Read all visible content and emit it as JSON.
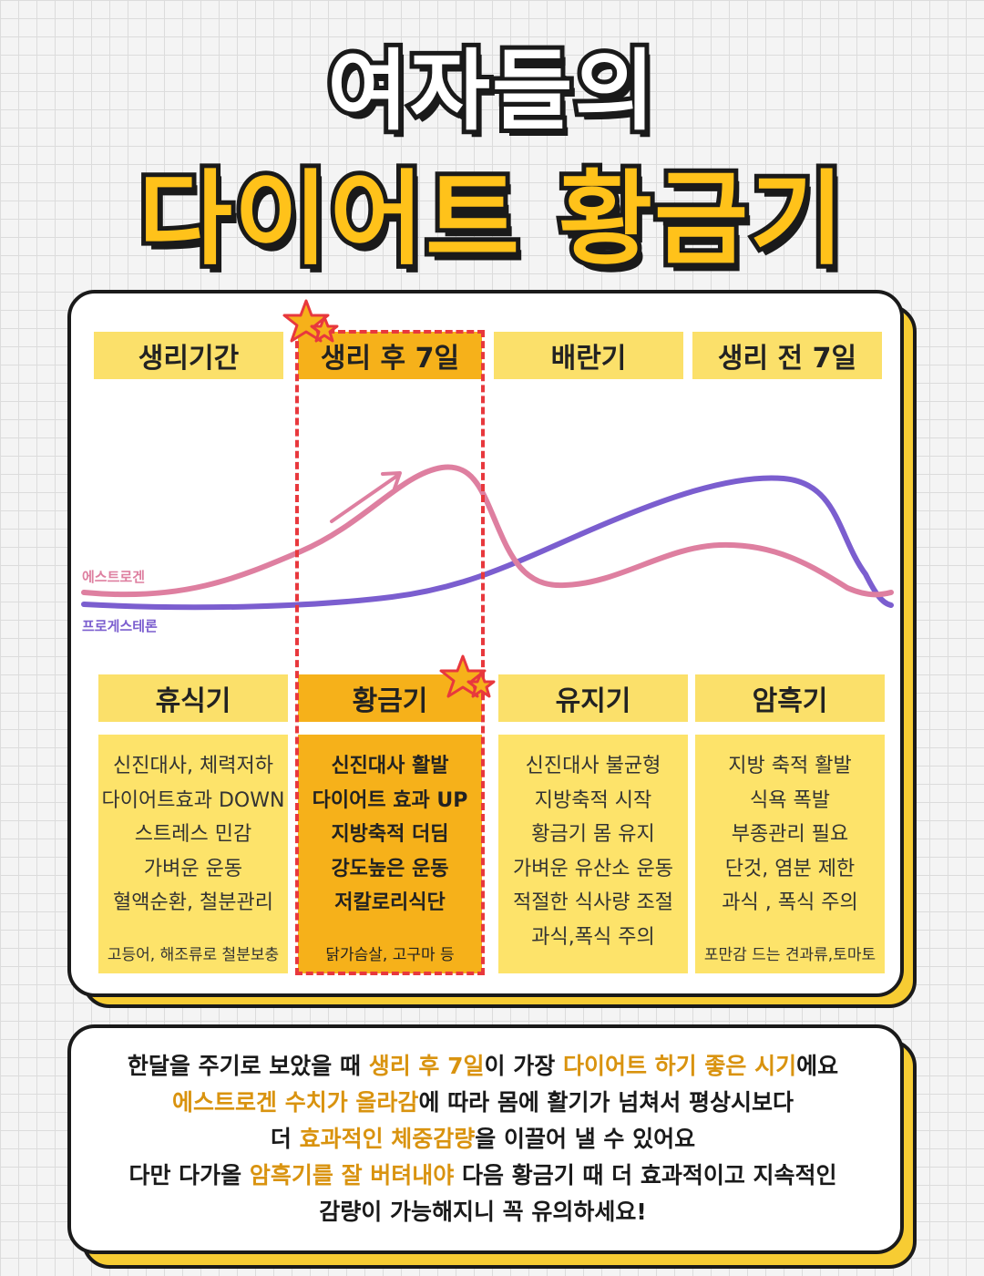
{
  "title": {
    "line1": "여자들의",
    "line2": "다이어트 황금기"
  },
  "colors": {
    "yellow": "#fbe06a",
    "gold": "#f6b11a",
    "estrogen": "#de7fa0",
    "progesterone": "#7b5ecf",
    "highlight": "#d9930f",
    "dash_red": "#e8383d"
  },
  "phases": [
    {
      "label": "생리기간"
    },
    {
      "label": "생리 후 7일",
      "highlight": true
    },
    {
      "label": "배란기"
    },
    {
      "label": "생리 전 7일"
    }
  ],
  "legend": {
    "estrogen": "에스트로겐",
    "progesterone": "프로게스테론"
  },
  "periods": [
    {
      "name": "휴식기",
      "lines": [
        "신진대사, 체력저하",
        "다이어트효과 DOWN",
        "스트레스 민감",
        "가벼운 운동",
        "혈액순환, 철분관리"
      ],
      "tip": "고등어, 해조류로 철분보충"
    },
    {
      "name": "황금기",
      "highlight": true,
      "lines": [
        "신진대사 활발",
        "다이어트 효과 UP",
        "지방축적 더딤",
        "강도높은 운동",
        "저칼로리식단"
      ],
      "tip": "닭가슴살, 고구마 등"
    },
    {
      "name": "유지기",
      "lines": [
        "신진대사 불균형",
        "지방축적 시작",
        "황금기 몸 유지",
        "가벼운 유산소 운동",
        "적절한 식사량 조절",
        "과식,폭식 주의"
      ],
      "tip": ""
    },
    {
      "name": "암흑기",
      "lines": [
        "지방 축적 활발",
        "식욕 폭발",
        "부종관리 필요",
        "단것, 염분 제한",
        "과식 , 폭식 주의"
      ],
      "tip": "포만감 드는 견과류,토마토"
    }
  ],
  "summary": {
    "line1": {
      "a": "한달을 주기로 보았을 때 ",
      "h1": "생리 후 7일",
      "b": "이 가장 ",
      "h2": "다이어트 하기 좋은 시기",
      "c": "에요"
    },
    "line2": {
      "h1": "에스트로겐 수치가 올라감",
      "a": "에 따라 몸에 활기가 넘쳐서 평상시보다"
    },
    "line3": {
      "a": "더 ",
      "h1": "효과적인 체중감량",
      "b": "을 이끌어 낼 수 있어요"
    },
    "line4": {
      "a": "다만 다가올 ",
      "h1": "암흑기를 잘 버텨내야",
      "b": " 다음 황금기 때 더 효과적이고 지속적인"
    },
    "line5": {
      "a": "감량이 가능해지니 꼭 유의하세요!"
    }
  }
}
